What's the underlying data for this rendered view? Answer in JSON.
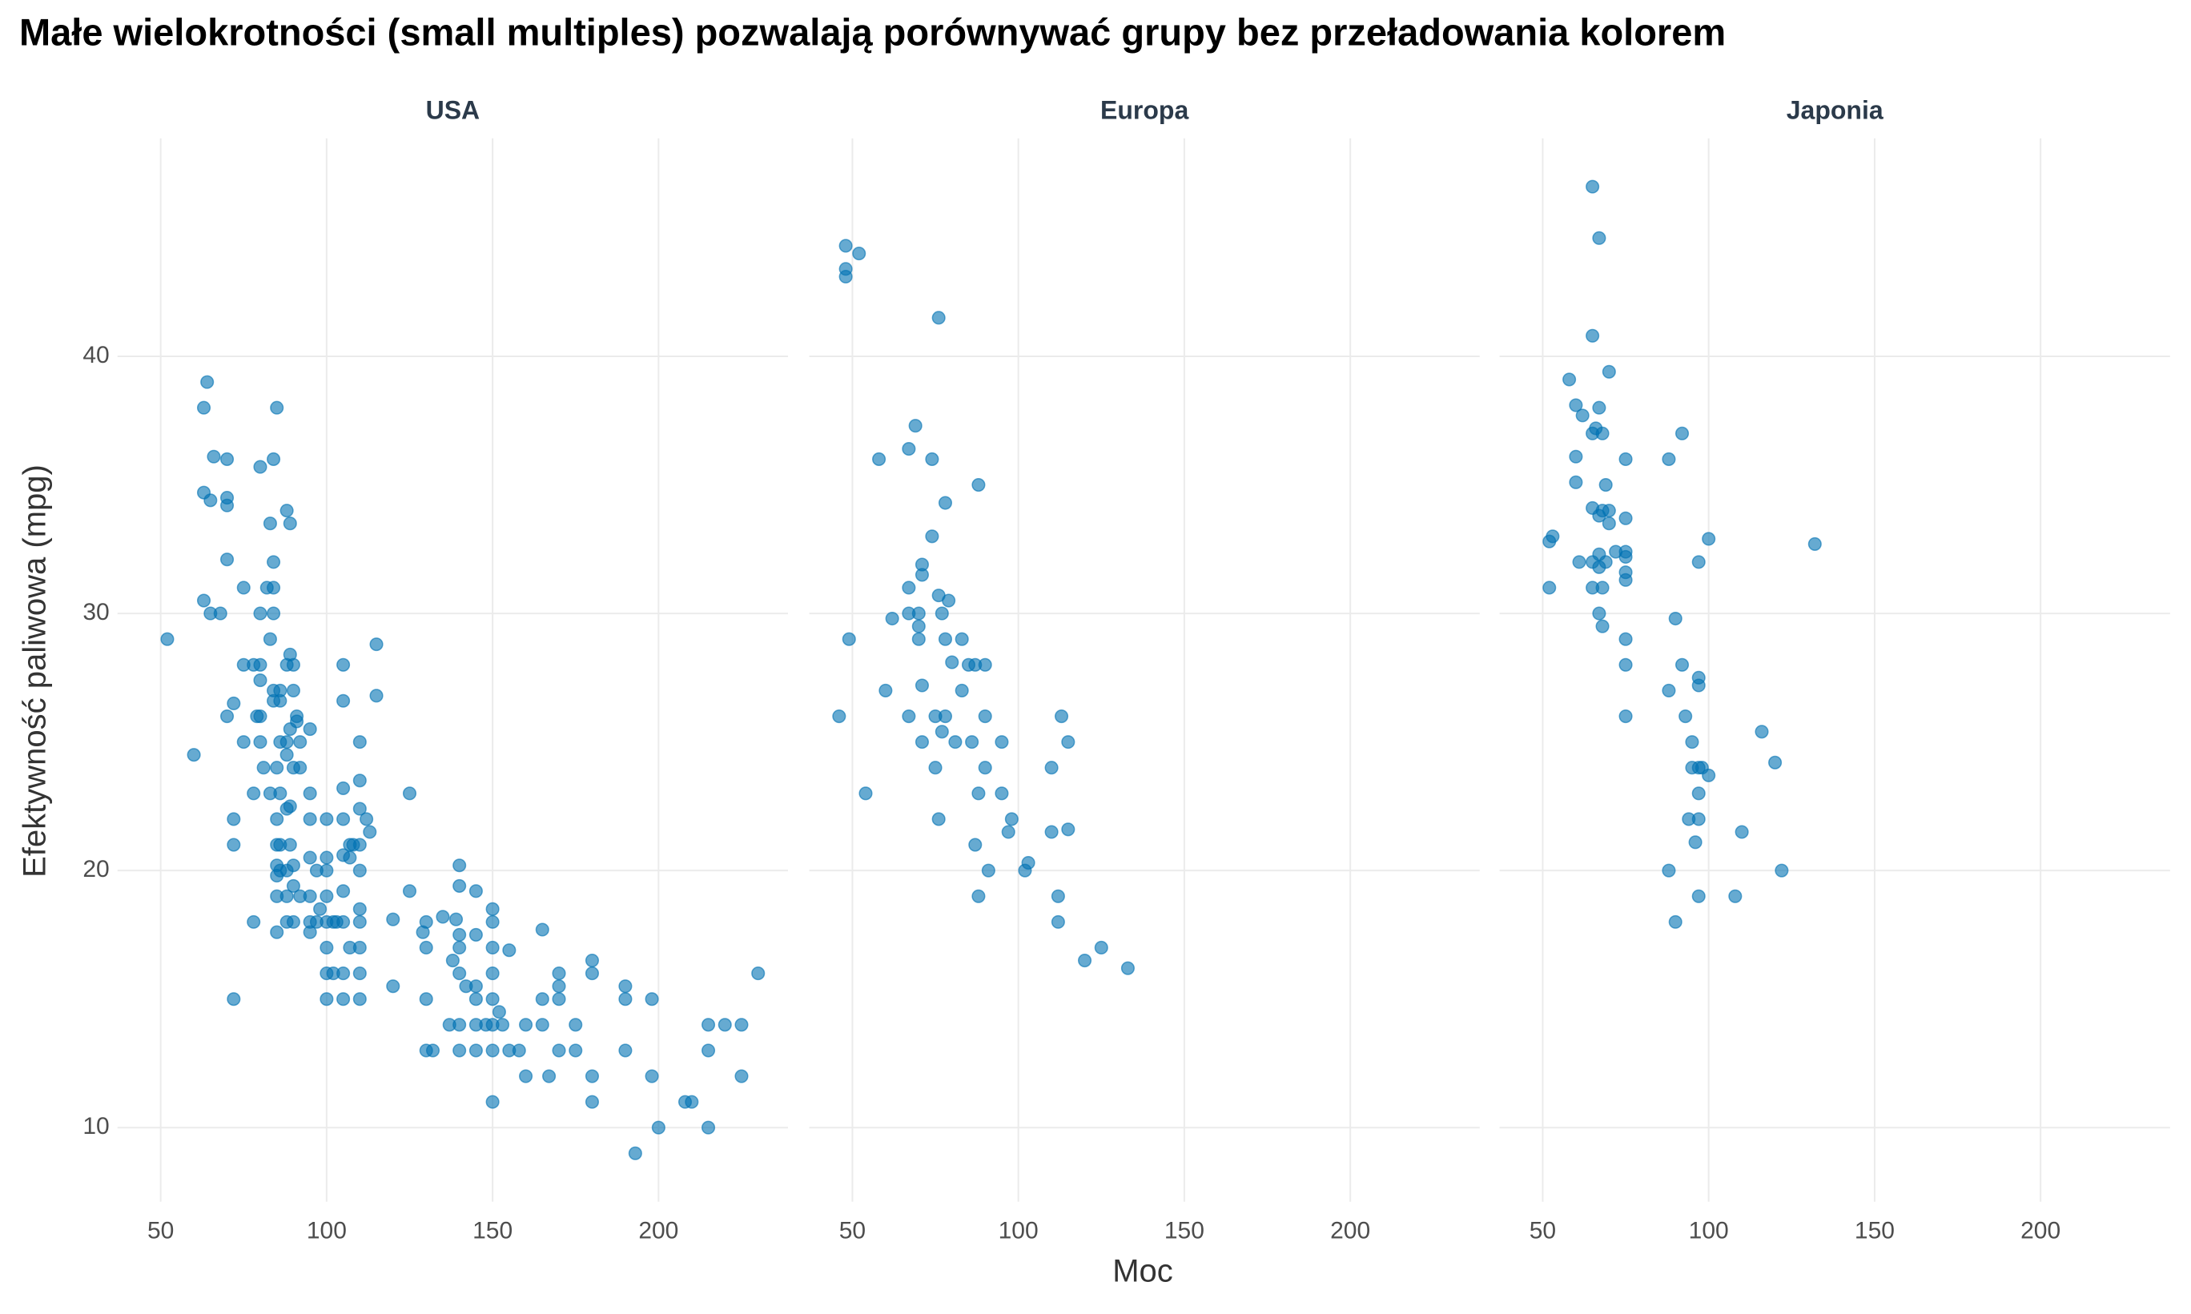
{
  "title": "Małe wielokrotności (small multiples) pozwalają porównywać grupy bez przeładowania kolorem",
  "x_label": "Moc",
  "y_label": "Efektywność paliwowa (mpg)",
  "chart_data": [
    {
      "type": "scatter",
      "title": "USA",
      "color": "#0072B2",
      "alpha": 0.6,
      "grid": true,
      "xlim": [
        37,
        239
      ],
      "ylim": [
        7.12,
        48.48
      ],
      "xticks": [
        50,
        100,
        150,
        200
      ],
      "yticks": [
        10,
        20,
        30,
        40
      ],
      "x": [
        52,
        60,
        63,
        64,
        63,
        65,
        66,
        63,
        65,
        68,
        70,
        70,
        70,
        70,
        70,
        72,
        72,
        72,
        72,
        75,
        75,
        75,
        78,
        78,
        78,
        79,
        80,
        80,
        80,
        80,
        80,
        80,
        81,
        82,
        83,
        83,
        83,
        84,
        84,
        84,
        84,
        84,
        84,
        85,
        85,
        85,
        85,
        85,
        85,
        85,
        85,
        86,
        86,
        86,
        86,
        86,
        86,
        88,
        88,
        88,
        88,
        88,
        88,
        88,
        88,
        89,
        89,
        89,
        89,
        89,
        90,
        90,
        90,
        90,
        90,
        90,
        91,
        91,
        92,
        92,
        92,
        95,
        95,
        95,
        95,
        95,
        95,
        95,
        97,
        97,
        98,
        100,
        100,
        100,
        100,
        100,
        100,
        100,
        100,
        102,
        102,
        103,
        105,
        105,
        105,
        105,
        105,
        105,
        105,
        105,
        105,
        107,
        107,
        107,
        108,
        110,
        110,
        110,
        110,
        110,
        110,
        110,
        110,
        110,
        110,
        112,
        113,
        115,
        115,
        120,
        120,
        125,
        125,
        129,
        130,
        130,
        130,
        130,
        132,
        135,
        137,
        138,
        139,
        140,
        140,
        140,
        140,
        140,
        140,
        140,
        142,
        145,
        145,
        145,
        145,
        145,
        145,
        148,
        150,
        150,
        150,
        150,
        150,
        150,
        150,
        150,
        152,
        153,
        155,
        155,
        158,
        160,
        160,
        165,
        165,
        165,
        167,
        170,
        170,
        170,
        170,
        175,
        175,
        180,
        180,
        180,
        180,
        190,
        190,
        190,
        193,
        198,
        198,
        200,
        208,
        210,
        215,
        215,
        215,
        220,
        225,
        225,
        230
      ],
      "y": [
        29,
        24.5,
        38,
        39,
        34.7,
        34.4,
        36.1,
        30.5,
        30,
        30,
        36,
        34.5,
        34.2,
        32.1,
        26,
        26.5,
        22,
        21,
        15,
        31,
        28,
        25,
        28,
        23,
        18,
        26,
        35.7,
        30,
        28,
        27.4,
        26,
        25,
        24,
        31,
        33.5,
        29,
        23,
        36,
        32,
        31,
        30,
        27,
        26.6,
        38,
        24,
        22,
        21,
        20.2,
        19.8,
        19,
        17.6,
        26.6,
        25,
        23,
        21,
        20,
        27,
        34,
        28,
        25,
        24.5,
        22.4,
        20,
        19,
        18,
        33.5,
        28.4,
        25.5,
        22.5,
        21,
        28,
        27,
        24,
        20.2,
        19.4,
        18,
        26,
        25.8,
        25,
        24,
        19,
        25.5,
        23,
        22,
        20.5,
        18,
        17.6,
        19,
        20,
        18,
        18.5,
        22,
        20.5,
        20,
        19,
        18,
        17,
        16,
        15,
        18,
        16,
        18,
        28,
        26.6,
        23.2,
        22,
        20.6,
        19.2,
        18,
        16,
        15,
        21,
        20.5,
        17,
        21,
        25,
        23.5,
        22.4,
        21,
        20,
        18.5,
        18,
        17,
        16,
        15,
        22,
        21.5,
        28.8,
        26.8,
        18.1,
        15.5,
        23,
        19.2,
        17.6,
        18,
        17,
        15,
        13,
        13,
        18.2,
        14,
        16.5,
        18.1,
        20.2,
        19.4,
        17.5,
        17,
        16,
        13,
        14,
        15.5,
        19.2,
        17.5,
        15.5,
        15,
        14,
        13,
        14,
        18.5,
        18,
        17,
        16,
        15,
        14,
        13,
        11,
        14.5,
        14,
        16.9,
        13,
        13,
        14,
        12,
        17.7,
        15,
        14,
        12,
        16,
        15.5,
        15,
        13,
        14,
        13,
        16.5,
        16,
        12,
        11,
        15.5,
        15,
        13,
        9,
        15,
        12,
        10,
        11,
        11,
        14,
        13,
        10,
        14,
        14,
        12,
        16
      ]
    },
    {
      "type": "scatter",
      "title": "Europa",
      "color": "#0072B2",
      "alpha": 0.6,
      "grid": true,
      "xlim": [
        37,
        239
      ],
      "ylim": [
        7.12,
        48.48
      ],
      "xticks": [
        50,
        100,
        150,
        200
      ],
      "yticks": [
        10,
        20,
        30,
        40
      ],
      "x": [
        46,
        48,
        48,
        48,
        49,
        52,
        54,
        58,
        60,
        62,
        67,
        67,
        67,
        67,
        69,
        70,
        70,
        70,
        71,
        71,
        71,
        71,
        74,
        74,
        75,
        75,
        76,
        76,
        76,
        77,
        77,
        78,
        78,
        78,
        79,
        80,
        81,
        83,
        83,
        85,
        86,
        87,
        87,
        88,
        88,
        88,
        90,
        90,
        90,
        91,
        95,
        95,
        97,
        98,
        102,
        103,
        110,
        110,
        112,
        112,
        113,
        115,
        115,
        120,
        125,
        133
      ],
      "y": [
        26,
        44.3,
        43.4,
        43.1,
        29,
        44,
        23,
        36,
        27,
        29.8,
        36.4,
        31,
        30,
        26,
        37.3,
        30,
        29.5,
        29,
        27.2,
        25,
        31.5,
        31.9,
        36,
        33,
        26,
        24,
        41.5,
        30.7,
        22,
        30,
        25.4,
        34.3,
        29,
        26,
        30.5,
        28.1,
        25,
        29,
        27,
        28,
        25,
        28,
        21,
        35,
        23,
        19,
        28,
        26,
        24,
        20,
        25,
        23,
        21.5,
        22,
        20,
        20.3,
        24,
        21.5,
        19,
        18,
        26,
        25,
        21.6,
        16.5,
        17,
        16.2
      ]
    },
    {
      "type": "scatter",
      "title": "Japonia",
      "color": "#0072B2",
      "alpha": 0.6,
      "grid": true,
      "xlim": [
        37,
        239
      ],
      "ylim": [
        7.12,
        48.48
      ],
      "xticks": [
        50,
        100,
        150,
        200
      ],
      "yticks": [
        10,
        20,
        30,
        40
      ],
      "x": [
        52,
        52,
        53,
        58,
        60,
        60,
        60,
        61,
        62,
        65,
        65,
        65,
        65,
        65,
        65,
        66,
        67,
        67,
        67,
        67,
        67,
        67,
        68,
        68,
        68,
        68,
        69,
        69,
        70,
        70,
        70,
        72,
        75,
        75,
        75,
        75,
        75,
        75,
        75,
        75,
        75,
        88,
        88,
        88,
        90,
        90,
        92,
        92,
        93,
        94,
        95,
        95,
        96,
        97,
        97,
        97,
        97,
        97,
        97,
        97,
        98,
        100,
        100,
        110,
        108,
        116,
        120,
        122,
        132
      ],
      "y": [
        31,
        32.8,
        33,
        39.1,
        36.1,
        35.1,
        38.1,
        32,
        37.7,
        46.6,
        40.8,
        37,
        34.1,
        32,
        31,
        37.2,
        44.6,
        38,
        33.8,
        32.3,
        31.8,
        30,
        29.5,
        34,
        31,
        37,
        35,
        32,
        33.5,
        34,
        39.4,
        32.4,
        36,
        33.7,
        32.4,
        32.2,
        31.6,
        31.3,
        29,
        28,
        26,
        36,
        27,
        20,
        29.8,
        18,
        37,
        28,
        26,
        22,
        25,
        24,
        21.1,
        32,
        27.5,
        27.2,
        24,
        23,
        22,
        19,
        24,
        23.7,
        32.9,
        21.5,
        19,
        25.4,
        24.2,
        20,
        32.7
      ]
    }
  ]
}
